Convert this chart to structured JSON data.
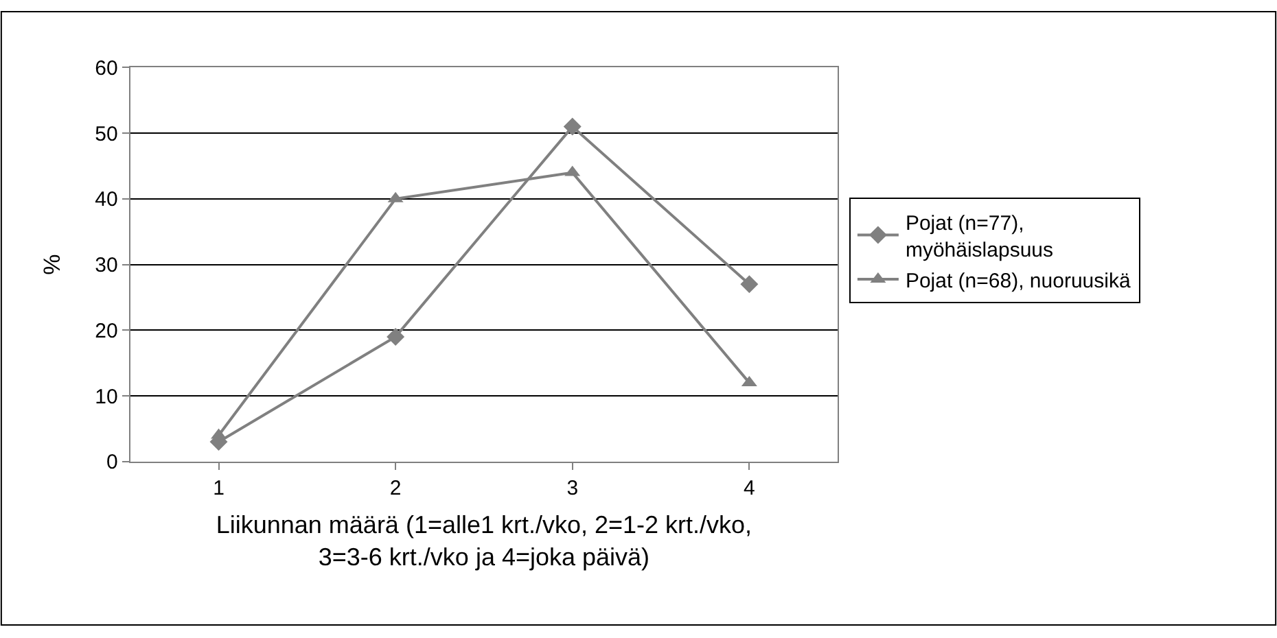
{
  "chart_data": {
    "type": "line",
    "xlabel": "Liikunnan määrä (1=alle1 krt./vko, 2=1-2 krt./vko, 3=3-6 krt./vko ja 4=joka päivä)",
    "ylabel": "%",
    "categories": [
      "1",
      "2",
      "3",
      "4"
    ],
    "series": [
      {
        "name": "Pojat (n=77), myöhäislapsuus",
        "color": "#808080",
        "marker": "diamond",
        "values": [
          3,
          19,
          51,
          27
        ]
      },
      {
        "name": "Pojat (n=68), nuoruusikä",
        "color": "#808080",
        "marker": "triangle",
        "values": [
          4,
          40,
          44,
          12
        ]
      }
    ],
    "ylim": [
      0,
      60
    ],
    "yticks": [
      0,
      10,
      20,
      30,
      40,
      50,
      60
    ],
    "grid": "y",
    "legend": "right"
  }
}
